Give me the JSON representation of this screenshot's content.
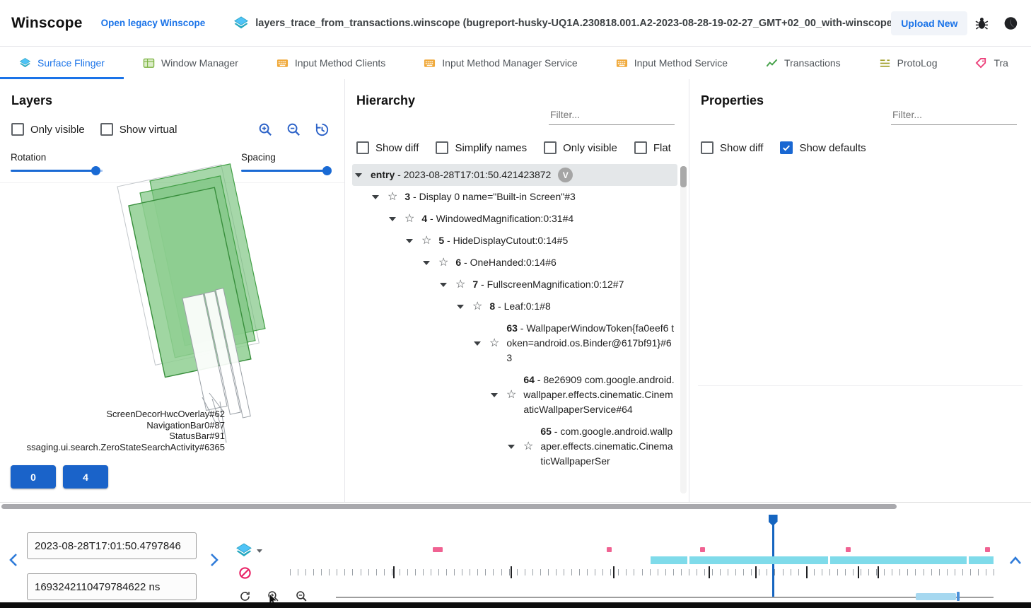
{
  "header": {
    "app_title": "Winscope",
    "legacy_link": "Open legacy Winscope",
    "trace_file": "layers_trace_from_transactions.winscope (bugreport-husky-UQ1A.230818.001.A2-2023-08-28-19-02-27_GMT+02_00_with-winscope_REDACTED.zip)",
    "upload_button": "Upload New"
  },
  "tabs": [
    {
      "label": "Surface Flinger",
      "icon": "layers-icon",
      "active": true
    },
    {
      "label": "Window Manager",
      "icon": "window-icon",
      "active": false
    },
    {
      "label": "Input Method Clients",
      "icon": "keyboard-icon",
      "active": false
    },
    {
      "label": "Input Method Manager Service",
      "icon": "keyboard-icon",
      "active": false
    },
    {
      "label": "Input Method Service",
      "icon": "keyboard-icon",
      "active": false
    },
    {
      "label": "Transactions",
      "icon": "chart-icon",
      "active": false
    },
    {
      "label": "ProtoLog",
      "icon": "list-icon",
      "active": false
    },
    {
      "label": "Tra",
      "icon": "tag-icon",
      "active": false
    }
  ],
  "layers_panel": {
    "title": "Layers",
    "checkboxes": [
      {
        "label": "Only visible",
        "checked": false
      },
      {
        "label": "Show virtual",
        "checked": false
      }
    ],
    "sliders": [
      {
        "label": "Rotation"
      },
      {
        "label": "Spacing"
      }
    ],
    "layer_labels": [
      "ScreenDecorHwcOverlay#62",
      "NavigationBar0#87",
      "StatusBar#91",
      "ssaging.ui.search.ZeroStateSearchActivity#6365"
    ],
    "display_buttons": [
      "0",
      "4"
    ]
  },
  "hierarchy_panel": {
    "title": "Hierarchy",
    "filter_placeholder": "Filter...",
    "checkboxes": [
      {
        "label": "Show diff",
        "checked": false
      },
      {
        "label": "Simplify names",
        "checked": false
      },
      {
        "label": "Only visible",
        "checked": false
      },
      {
        "label": "Flat",
        "checked": false
      }
    ],
    "tree": [
      {
        "depth": 0,
        "label": "entry - 2023-08-28T17:01:50.421423872",
        "chip": "V",
        "selected": true,
        "star": false
      },
      {
        "depth": 1,
        "label": "3 - Display 0 name=\"Built-in Screen\"#3",
        "star": true
      },
      {
        "depth": 2,
        "label": "4 - WindowedMagnification:0:31#4",
        "star": true
      },
      {
        "depth": 3,
        "label": "5 - HideDisplayCutout:0:14#5",
        "star": true
      },
      {
        "depth": 4,
        "label": "6 - OneHanded:0:14#6",
        "star": true
      },
      {
        "depth": 5,
        "label": "7 - FullscreenMagnification:0:12#7",
        "star": true
      },
      {
        "depth": 6,
        "label": "8 - Leaf:0:1#8",
        "star": true
      },
      {
        "depth": 7,
        "label": "63 - WallpaperWindowToken{fa0eef6 token=android.os.Binder@617bf91}#63",
        "star": true
      },
      {
        "depth": 8,
        "label": "64 - 8e26909 com.google.android.wallpaper.effects.cinematic.CinematicWallpaperService#64",
        "star": true
      },
      {
        "depth": 9,
        "label": "65 - com.google.android.wallpaper.effects.cinematic.CinematicWallpaperSer",
        "star": true
      }
    ]
  },
  "properties_panel": {
    "title": "Properties",
    "filter_placeholder": "Filter...",
    "checkboxes": [
      {
        "label": "Show diff",
        "checked": false
      },
      {
        "label": "Show defaults",
        "checked": true
      }
    ]
  },
  "timeline": {
    "timestamp_human": "2023-08-28T17:01:50.4797846",
    "timestamp_ns": "1693242110479784622 ns",
    "pink_markers": [
      {
        "pct": 20.3,
        "w": 14
      },
      {
        "pct": 45.0,
        "w": 7
      },
      {
        "pct": 58.3,
        "w": 7
      },
      {
        "pct": 79.0,
        "w": 7
      },
      {
        "pct": 98.8,
        "w": 7
      }
    ],
    "cyan_band": {
      "start_pct": 51.3,
      "end_pct": 100
    },
    "band_gaps_pct": [
      56.5,
      76.5,
      96.2
    ],
    "dark_ticks_pct": [
      14.7,
      31.4,
      45.9,
      59.5,
      66.1,
      73.4,
      80.7,
      83.5
    ],
    "minor_tick_count": 91,
    "cursor_pct": 68.6
  }
}
